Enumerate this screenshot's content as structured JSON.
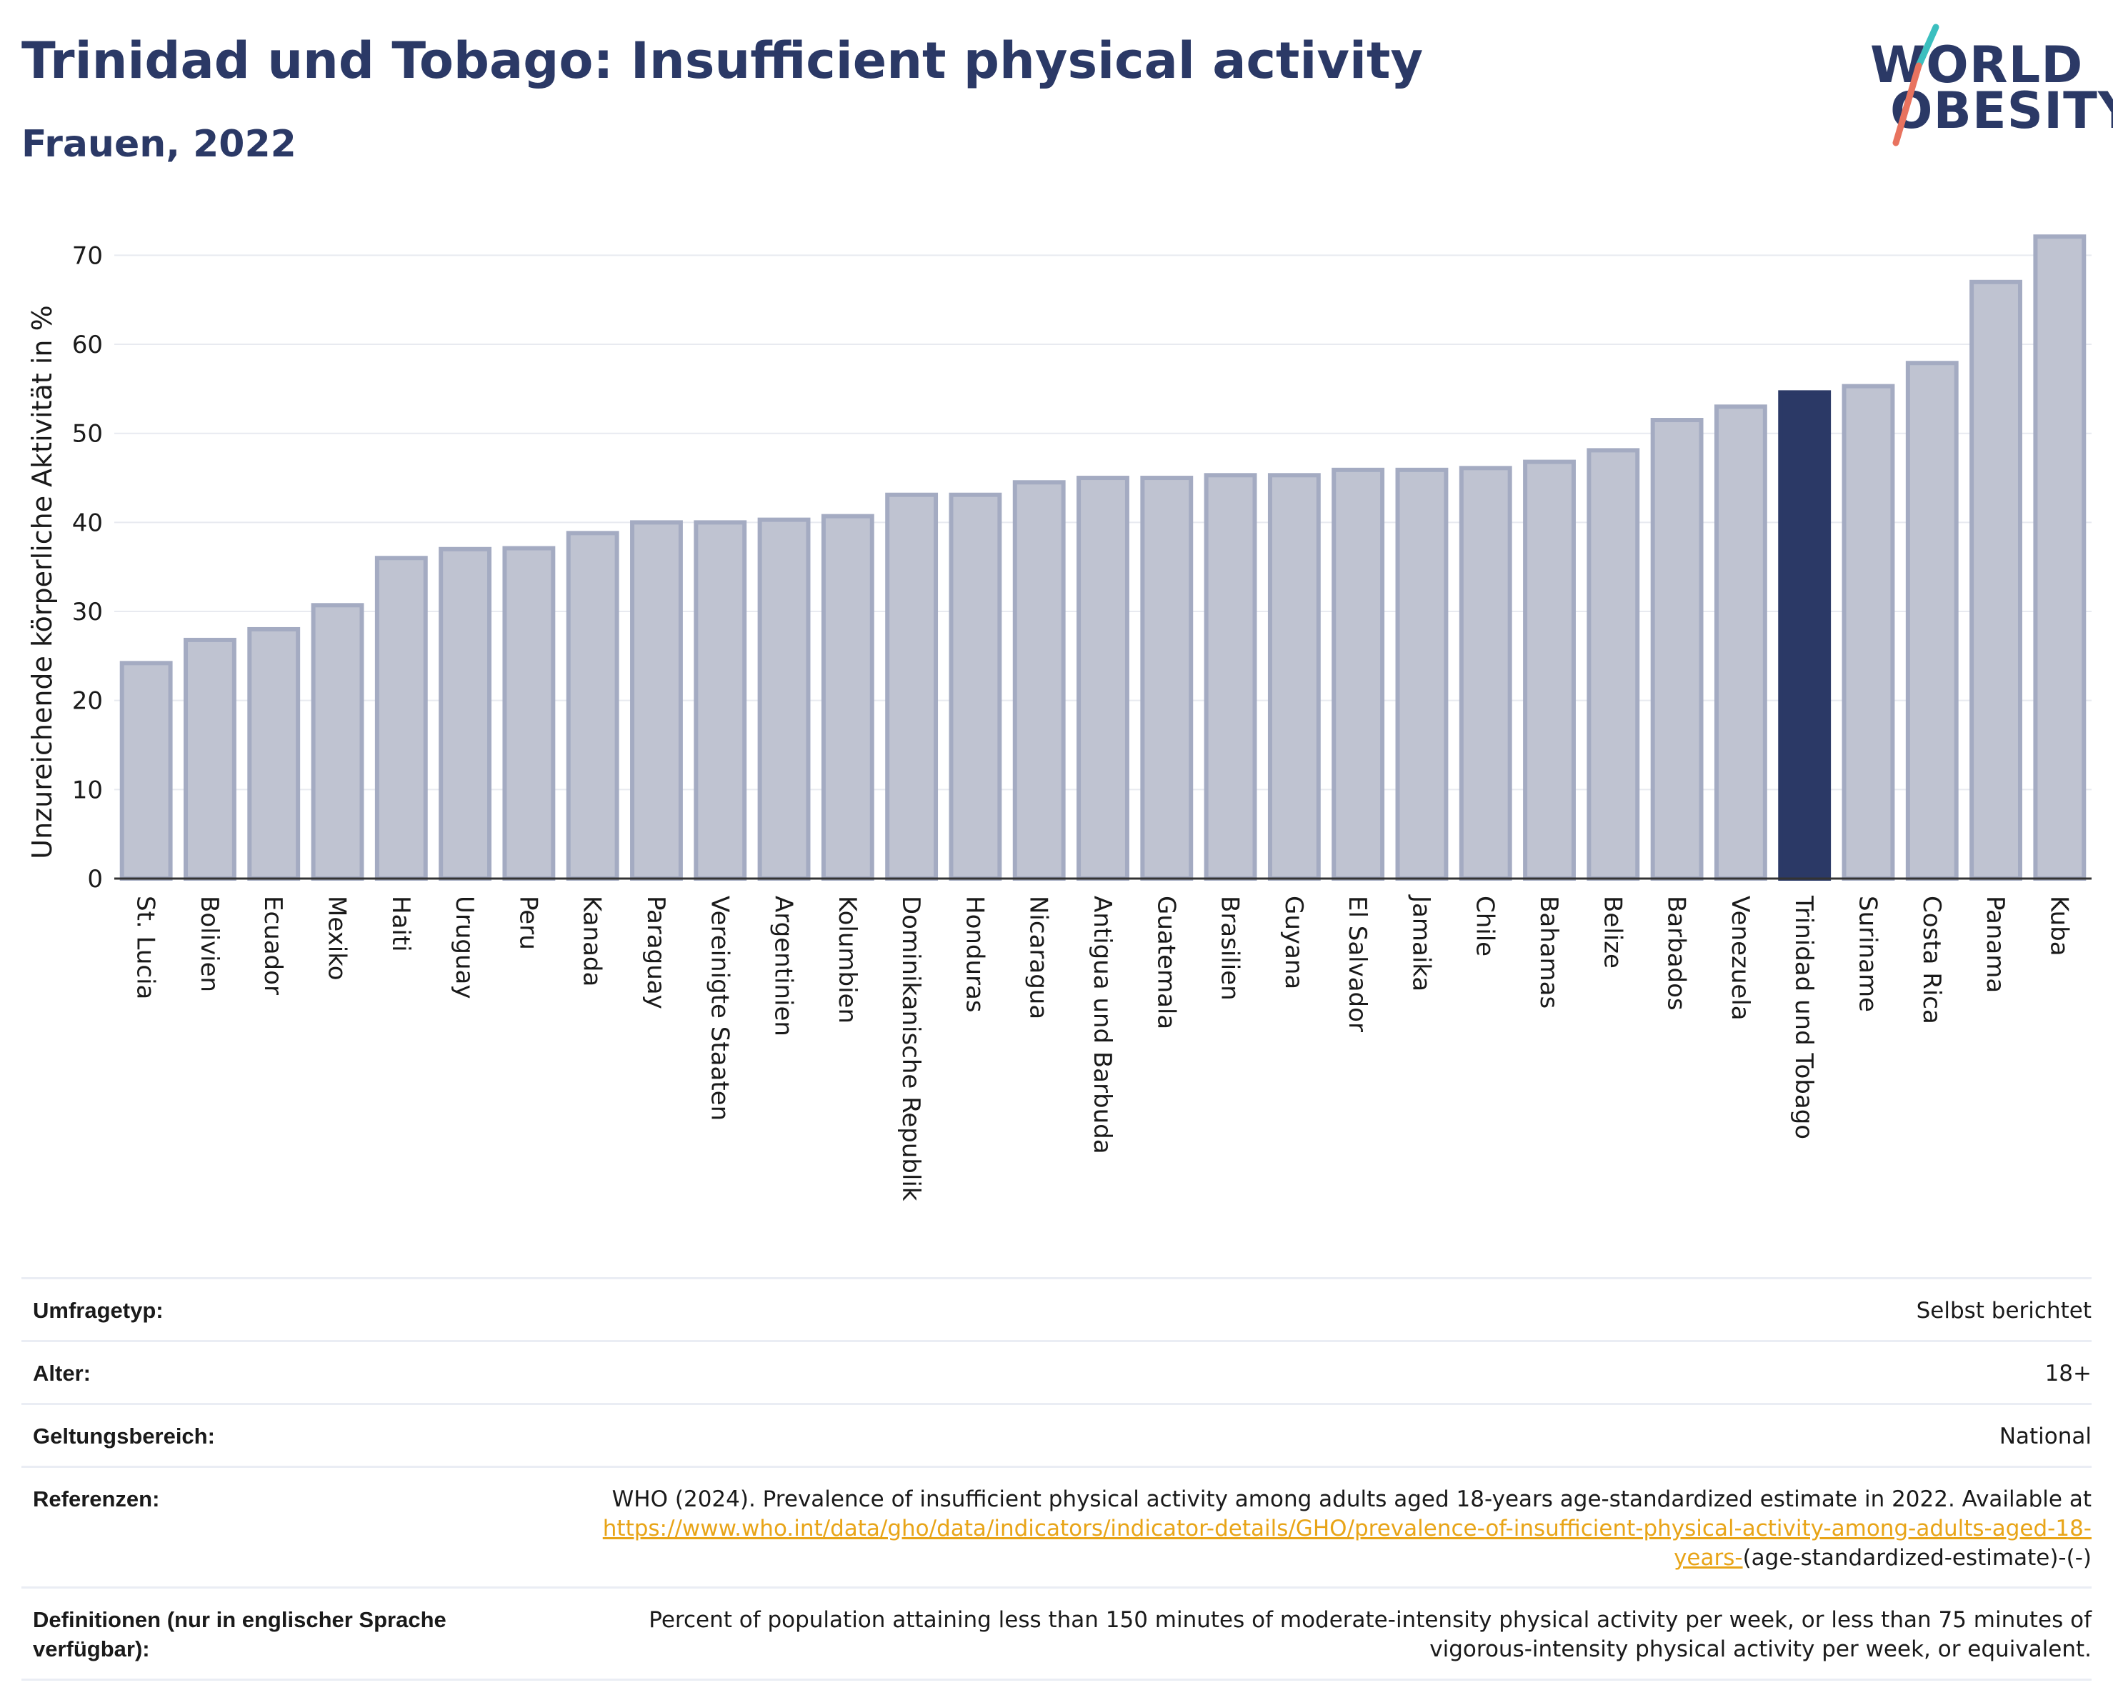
{
  "header": {
    "title": "Trinidad und Tobago: Insufficient physical activity",
    "subtitle": "Frauen, 2022"
  },
  "logo": {
    "line1": "WORLD",
    "line2": "OBESITY"
  },
  "colors": {
    "highlight": "#2b3966",
    "bar_fill": "#bfc3d1",
    "bar_stroke": "#a4abc2",
    "accent_teal": "#3bbfbf",
    "accent_coral": "#e8735f"
  },
  "chart_data": {
    "type": "bar",
    "ylabel": "Unzureichende körperliche Aktivität in %",
    "xlabel": "",
    "ylim": [
      0,
      73
    ],
    "yticks": [
      0,
      10,
      20,
      30,
      40,
      50,
      60,
      70
    ],
    "grid": true,
    "highlight": "Trinidad und Tobago",
    "categories": [
      "St. Lucia",
      "Bolivien",
      "Ecuador",
      "Mexiko",
      "Haiti",
      "Uruguay",
      "Peru",
      "Kanada",
      "Paraguay",
      "Vereinigte Staaten",
      "Argentinien",
      "Kolumbien",
      "Dominikanische Republik",
      "Honduras",
      "Nicaragua",
      "Antigua und Barbuda",
      "Guatemala",
      "Brasilien",
      "Guyana",
      "El Salvador",
      "Jamaika",
      "Chile",
      "Bahamas",
      "Belize",
      "Barbados",
      "Venezuela",
      "Trinidad und Tobago",
      "Suriname",
      "Costa Rica",
      "Panama",
      "Kuba"
    ],
    "values": [
      24.2,
      26.8,
      28.0,
      30.7,
      36.0,
      37.0,
      37.1,
      38.8,
      40.0,
      40.0,
      40.3,
      40.7,
      43.1,
      43.1,
      44.5,
      45.0,
      45.0,
      45.3,
      45.3,
      45.9,
      45.9,
      46.1,
      46.8,
      48.1,
      51.5,
      53.0,
      54.6,
      55.3,
      57.9,
      67.0,
      72.1
    ]
  },
  "info": {
    "rows": [
      {
        "key": "Umfragetyp:",
        "value": "Selbst berichtet"
      },
      {
        "key": "Alter:",
        "value": "18+"
      },
      {
        "key": "Geltungsbereich:",
        "value": "National"
      }
    ],
    "references": {
      "key": "Referenzen:",
      "text": "WHO (2024). Prevalence of insufficient physical activity among adults aged 18-years age-standardized estimate in 2022. Available at",
      "link": "https://www.who.int/data/gho/data/indicators/indicator-details/GHO/prevalence-of-insufficient-physical-activity-among-adults-aged-18-years-",
      "tail": "(age-standardized-estimate)-(-)"
    },
    "definitions": {
      "key": "Definitionen (nur in englischer Sprache verfügbar):",
      "value": "Percent of population attaining less than 150 minutes of moderate-intensity physical activity per week, or less than 75 minutes of vigorous-intensity physical activity per week, or equivalent."
    }
  }
}
